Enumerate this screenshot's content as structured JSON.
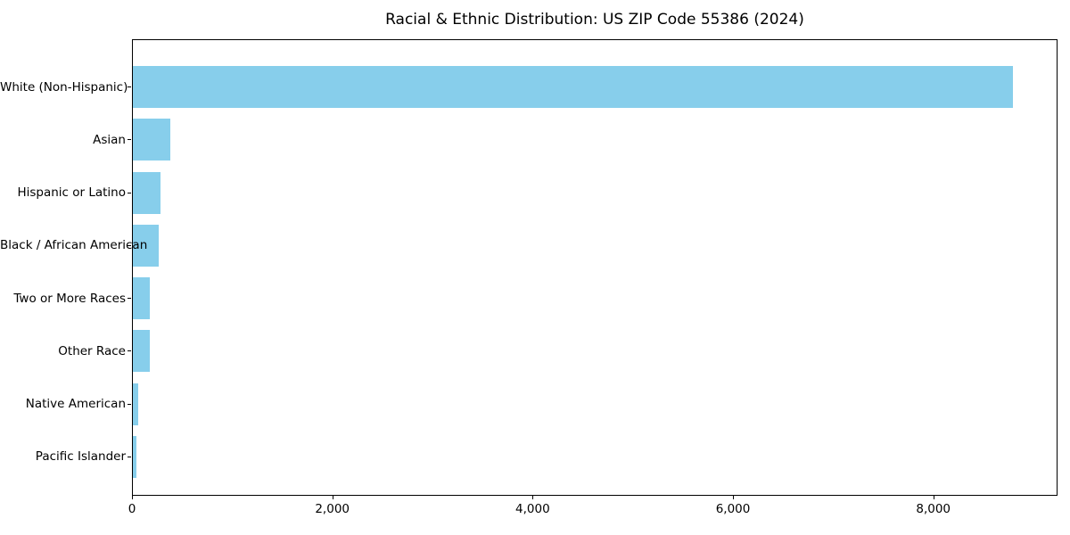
{
  "title": "Racial & Ethnic Distribution: US ZIP Code 55386 (2024)",
  "colors": {
    "bar": "#87CEEB",
    "axis": "#000000",
    "text": "#000000",
    "background": "#FFFFFF"
  },
  "chart_data": {
    "type": "bar",
    "orientation": "horizontal",
    "title": "Racial & Ethnic Distribution: US ZIP Code 55386 (2024)",
    "categories": [
      "White (Non-Hispanic)",
      "Asian",
      "Hispanic or Latino",
      "Black / African American",
      "Two or More Races",
      "Other Race",
      "Native American",
      "Pacific Islander"
    ],
    "values": [
      8790,
      370,
      275,
      260,
      165,
      170,
      50,
      40
    ],
    "bar_color": "#87CEEB",
    "xlabel": "",
    "ylabel": "",
    "xlim": [
      0,
      9240
    ],
    "xticks": [
      0,
      2000,
      4000,
      6000,
      8000
    ],
    "xtick_labels": [
      "0",
      "2,000",
      "4,000",
      "6,000",
      "8,000"
    ],
    "grid": false,
    "legend": null
  }
}
